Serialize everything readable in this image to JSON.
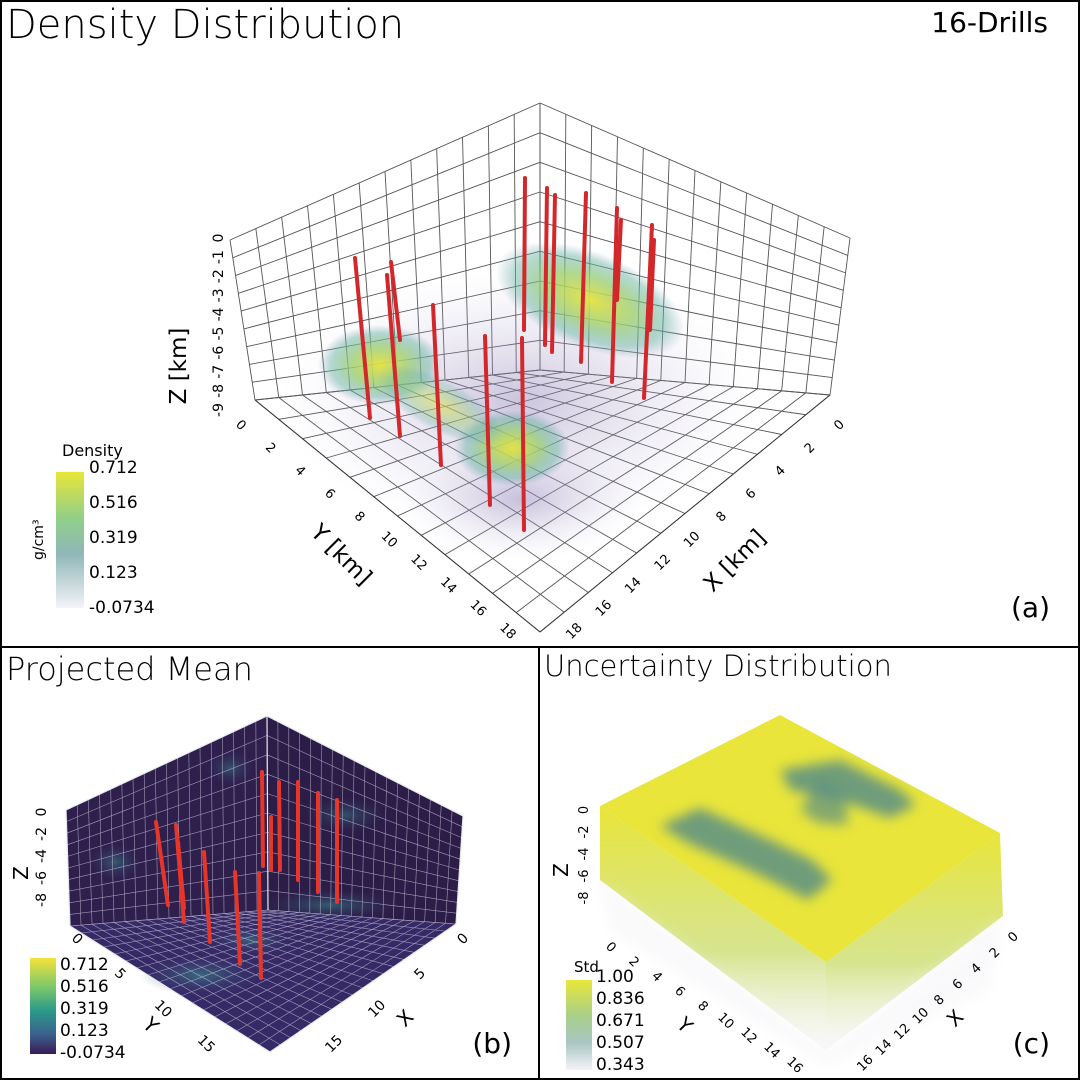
{
  "panel_a": {
    "title": "Density Distribution",
    "drills_label": "16-Drills",
    "z_label": "Z [km]",
    "y_label": "Y [km]",
    "x_label": "X [km]",
    "z_ticks": [
      "-9",
      "-8",
      "-7",
      "-6",
      "-5",
      "-4",
      "-3",
      "-2",
      "-1",
      "0"
    ],
    "y_ticks": [
      "0",
      "2",
      "4",
      "6",
      "8",
      "10",
      "12",
      "14",
      "16",
      "18"
    ],
    "x_ticks": [
      "0",
      "2",
      "4",
      "6",
      "8",
      "10",
      "12",
      "14",
      "16",
      "18"
    ],
    "colorbar": {
      "title": "Density",
      "unit": "g/cm³",
      "ticks": [
        "0.712",
        "0.516",
        "0.319",
        "0.123",
        "-0.0734"
      ]
    },
    "label": "(a)"
  },
  "panel_b": {
    "title": "Projected Mean",
    "z_label": "Z",
    "y_label": "Y",
    "x_label": "X",
    "z_ticks": [
      "-8",
      "-6",
      "-4",
      "-2",
      "0"
    ],
    "y_ticks": [
      "0",
      "5",
      "10",
      "15"
    ],
    "x_ticks": [
      "0",
      "5",
      "10",
      "15"
    ],
    "colorbar": {
      "ticks": [
        "0.712",
        "0.516",
        "0.319",
        "0.123",
        "-0.0734"
      ]
    },
    "label": "(b)"
  },
  "panel_c": {
    "title": "Uncertainty Distribution",
    "z_label": "Z",
    "y_label": "Y",
    "x_label": "X",
    "z_ticks": [
      "-8",
      "-6",
      "-4",
      "-2",
      "0"
    ],
    "y_ticks": [
      "0",
      "2",
      "4",
      "6",
      "8",
      "10",
      "12",
      "14",
      "16"
    ],
    "x_ticks": [
      "16",
      "14",
      "12",
      "10",
      "8",
      "6",
      "4",
      "2",
      "0"
    ],
    "colorbar": {
      "title": "Std",
      "ticks": [
        "1.00",
        "0.836",
        "0.671",
        "0.507",
        "0.343"
      ]
    },
    "label": "(c)"
  },
  "colors": {
    "drill": "#d8282a",
    "viridis_high": "#e8e63a",
    "viridis_mid": "#5fb6a0",
    "viridis_low": "#3b1d5a",
    "haze": "#9b8fbf"
  }
}
